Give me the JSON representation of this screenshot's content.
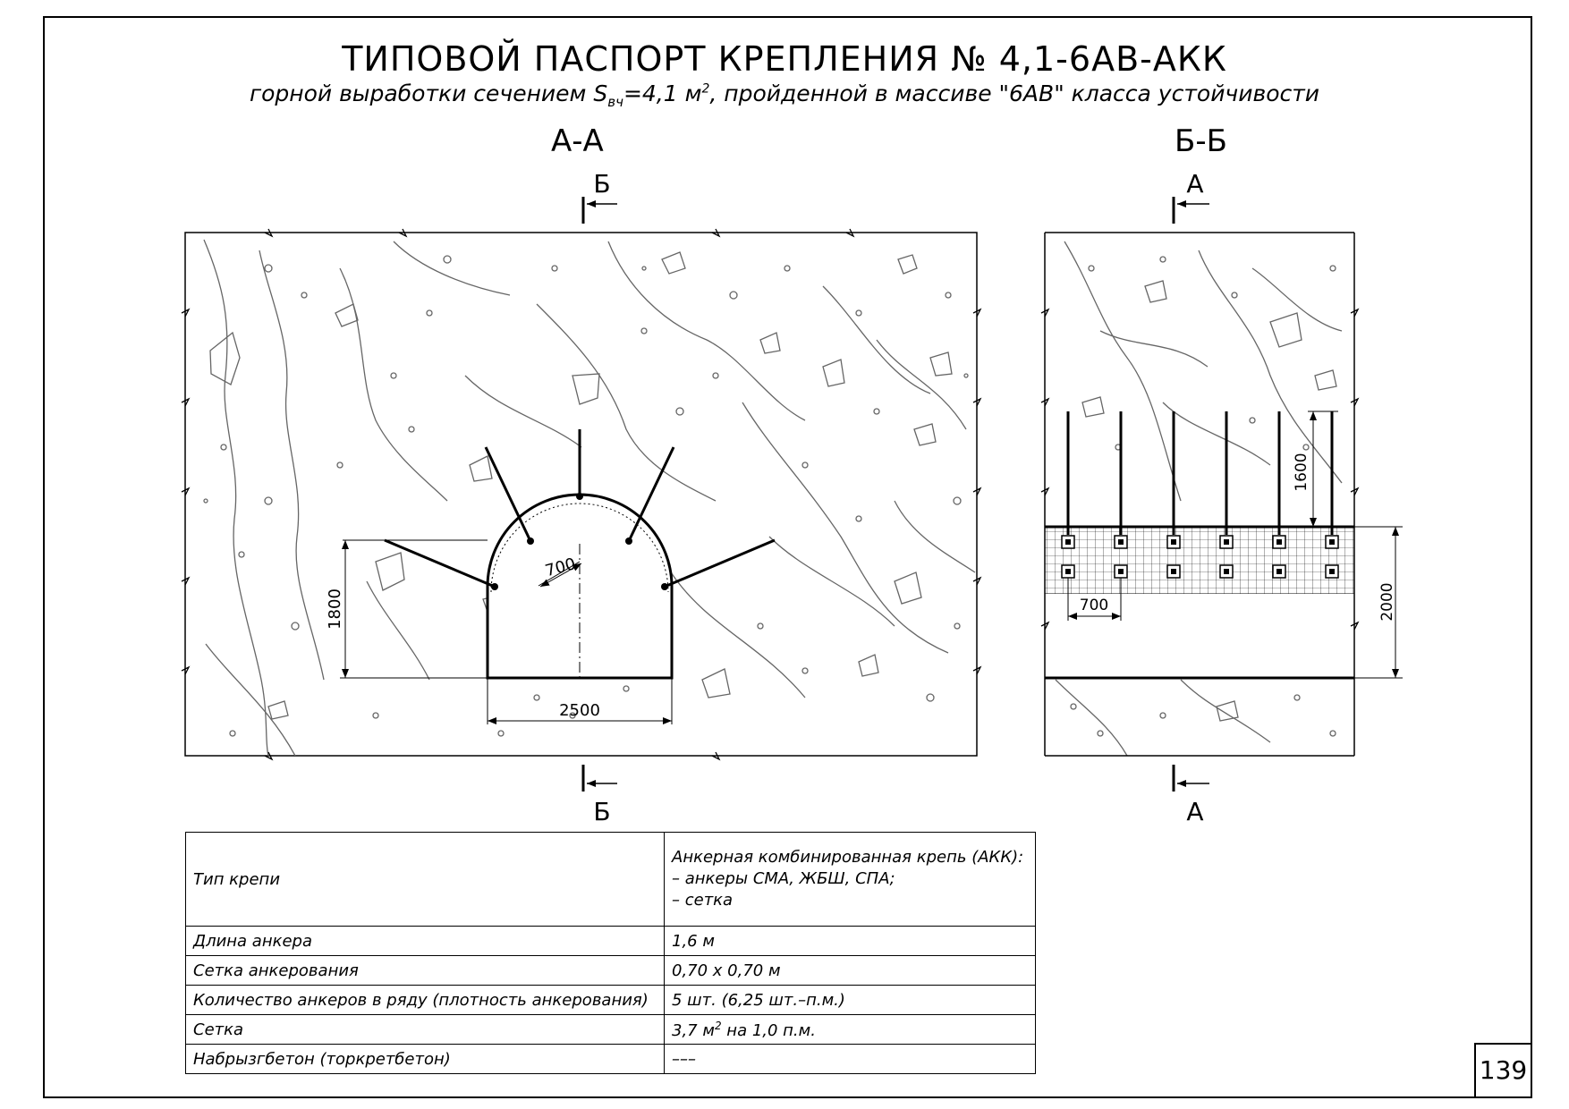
{
  "title": "ТИПОВОЙ ПАСПОРТ КРЕПЛЕНИЯ № 4,1-6АВ-АКК",
  "subtitle": {
    "before": "горной выработки сечением S",
    "sub": "вч",
    "mid": "=4,1 м",
    "sup": "2",
    "after": ", пройденной в массиве \"6АВ\" класса устойчивости"
  },
  "sections": {
    "aa": {
      "label": "А-А",
      "cut_top": "Б",
      "cut_bottom": "Б",
      "dims": {
        "width": "2500",
        "height": "1800",
        "spacing": "700"
      }
    },
    "bb": {
      "label": "Б-Б",
      "cut_top": "А",
      "cut_bottom": "А",
      "dims": {
        "anchor_length": "1600",
        "height": "2000",
        "spacing": "700"
      }
    }
  },
  "colors": {
    "rock": "#666666",
    "lines": "#000000"
  },
  "table": {
    "rows": [
      {
        "param": "Тип крепи",
        "value_lines": [
          "Анкерная комбинированная крепь (АКК):",
          "– анкеры СМА, ЖБШ, СПА;",
          "– сетка"
        ]
      },
      {
        "param": "Длина анкера",
        "value": "1,6 м"
      },
      {
        "param": "Сетка анкерования",
        "value": "0,70 х 0,70 м"
      },
      {
        "param": "Количество анкеров в ряду (плотность анкерования)",
        "value": "5 шт. (6,25 шт.–п.м.)"
      },
      {
        "param": "Сетка",
        "value_pre": "3,7 м",
        "value_sup": "2",
        "value_post": " на 1,0 п.м."
      },
      {
        "param": "Набрызгбетон (торкретбетон)",
        "value": "–––"
      }
    ]
  },
  "page_number": "139"
}
